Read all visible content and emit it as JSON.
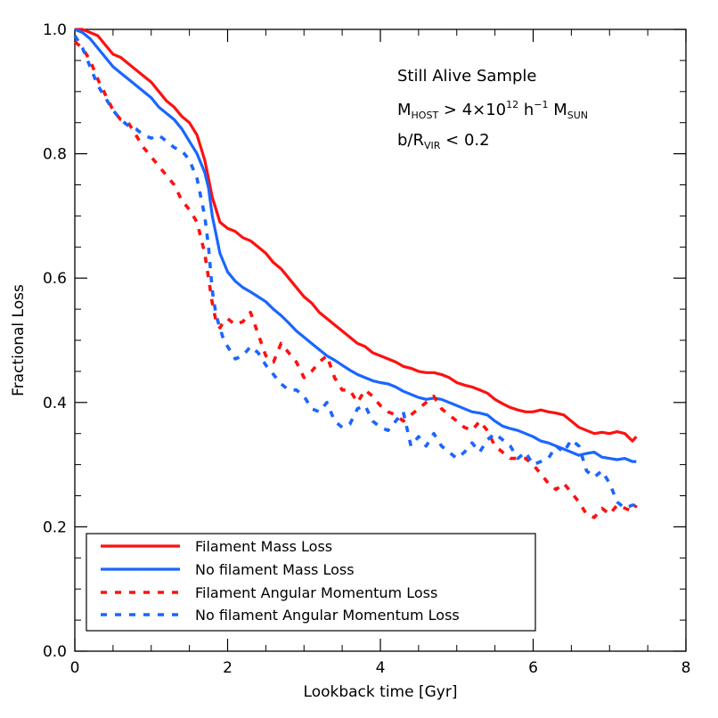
{
  "chart_data": {
    "type": "line",
    "xlabel": "Lookback time [Gyr]",
    "ylabel": "Fractional Loss",
    "xlim": [
      0,
      8
    ],
    "ylim": [
      0,
      1
    ],
    "xticks": [
      "0",
      "2",
      "4",
      "6",
      "8"
    ],
    "yticks": [
      "0.0",
      "0.2",
      "0.4",
      "0.6",
      "0.8",
      "1.0"
    ],
    "grid": false,
    "legend_position": "bottom-left",
    "annotations": {
      "line1": "Still Alive Sample",
      "line2_prefix": "M",
      "line2_sub1": "HOST",
      "line2_mid": " > 4×10",
      "line2_sup1": "12",
      "line2_mid2": " h",
      "line2_sup2": "−1",
      "line2_mid3": " M",
      "line2_sub2": "SUN",
      "line3_prefix": "b/R",
      "line3_sub": "VIR",
      "line3_suffix": " < 0.2"
    },
    "series": [
      {
        "name": "Filament Mass Loss",
        "color": "#ff1010",
        "style": "solid",
        "x": [
          0,
          0.1,
          0.2,
          0.3,
          0.4,
          0.5,
          0.6,
          0.7,
          0.8,
          0.9,
          1.0,
          1.1,
          1.2,
          1.3,
          1.4,
          1.5,
          1.6,
          1.7,
          1.75,
          1.8,
          1.85,
          1.9,
          1.95,
          2.0,
          2.1,
          2.2,
          2.3,
          2.4,
          2.5,
          2.6,
          2.7,
          2.8,
          2.9,
          3.0,
          3.1,
          3.2,
          3.3,
          3.4,
          3.5,
          3.6,
          3.7,
          3.8,
          3.9,
          4.0,
          4.1,
          4.2,
          4.3,
          4.4,
          4.5,
          4.6,
          4.7,
          4.8,
          4.9,
          5.0,
          5.1,
          5.2,
          5.3,
          5.4,
          5.5,
          5.6,
          5.7,
          5.8,
          5.9,
          6.0,
          6.1,
          6.2,
          6.3,
          6.4,
          6.5,
          6.6,
          6.7,
          6.8,
          6.9,
          7.0,
          7.1,
          7.2,
          7.3,
          7.35
        ],
        "values": [
          1.0,
          1.0,
          0.995,
          0.99,
          0.975,
          0.96,
          0.955,
          0.945,
          0.935,
          0.925,
          0.915,
          0.9,
          0.885,
          0.875,
          0.86,
          0.85,
          0.83,
          0.79,
          0.76,
          0.73,
          0.71,
          0.69,
          0.685,
          0.68,
          0.675,
          0.665,
          0.66,
          0.65,
          0.64,
          0.625,
          0.615,
          0.6,
          0.585,
          0.57,
          0.56,
          0.545,
          0.535,
          0.525,
          0.515,
          0.505,
          0.495,
          0.49,
          0.48,
          0.475,
          0.47,
          0.465,
          0.458,
          0.455,
          0.45,
          0.448,
          0.448,
          0.445,
          0.44,
          0.432,
          0.428,
          0.425,
          0.42,
          0.415,
          0.405,
          0.398,
          0.392,
          0.388,
          0.385,
          0.385,
          0.388,
          0.385,
          0.383,
          0.38,
          0.37,
          0.36,
          0.355,
          0.35,
          0.352,
          0.35,
          0.353,
          0.35,
          0.338,
          0.345
        ]
      },
      {
        "name": "No filament Mass Loss",
        "color": "#1a66ff",
        "style": "solid",
        "x": [
          0,
          0.1,
          0.2,
          0.3,
          0.4,
          0.5,
          0.6,
          0.7,
          0.8,
          0.9,
          1.0,
          1.1,
          1.2,
          1.3,
          1.4,
          1.5,
          1.6,
          1.7,
          1.75,
          1.8,
          1.85,
          1.9,
          1.95,
          2.0,
          2.1,
          2.2,
          2.3,
          2.4,
          2.5,
          2.6,
          2.7,
          2.8,
          2.9,
          3.0,
          3.1,
          3.2,
          3.3,
          3.4,
          3.5,
          3.6,
          3.7,
          3.8,
          3.9,
          4.0,
          4.1,
          4.2,
          4.3,
          4.4,
          4.5,
          4.6,
          4.7,
          4.8,
          4.9,
          5.0,
          5.1,
          5.2,
          5.3,
          5.4,
          5.5,
          5.6,
          5.7,
          5.8,
          5.9,
          6.0,
          6.1,
          6.2,
          6.3,
          6.4,
          6.5,
          6.6,
          6.7,
          6.8,
          6.9,
          7.0,
          7.1,
          7.2,
          7.3,
          7.35
        ],
        "values": [
          1.0,
          0.995,
          0.985,
          0.97,
          0.955,
          0.94,
          0.93,
          0.92,
          0.91,
          0.9,
          0.89,
          0.875,
          0.865,
          0.855,
          0.84,
          0.82,
          0.8,
          0.77,
          0.745,
          0.7,
          0.67,
          0.64,
          0.625,
          0.61,
          0.595,
          0.585,
          0.578,
          0.57,
          0.562,
          0.55,
          0.54,
          0.528,
          0.515,
          0.505,
          0.495,
          0.485,
          0.475,
          0.468,
          0.46,
          0.452,
          0.445,
          0.44,
          0.435,
          0.432,
          0.43,
          0.425,
          0.418,
          0.413,
          0.408,
          0.405,
          0.407,
          0.405,
          0.4,
          0.395,
          0.39,
          0.385,
          0.383,
          0.38,
          0.37,
          0.362,
          0.358,
          0.355,
          0.35,
          0.345,
          0.338,
          0.335,
          0.33,
          0.325,
          0.32,
          0.315,
          0.318,
          0.32,
          0.312,
          0.31,
          0.308,
          0.31,
          0.305,
          0.305
        ]
      },
      {
        "name": "Filament Angular Momentum Loss",
        "color": "#ff1010",
        "style": "dashed",
        "x": [
          0,
          0.1,
          0.2,
          0.3,
          0.4,
          0.5,
          0.6,
          0.7,
          0.8,
          0.9,
          1.0,
          1.1,
          1.2,
          1.3,
          1.4,
          1.5,
          1.6,
          1.7,
          1.75,
          1.8,
          1.85,
          1.9,
          1.95,
          2.0,
          2.1,
          2.2,
          2.3,
          2.4,
          2.5,
          2.6,
          2.7,
          2.8,
          2.9,
          3.0,
          3.1,
          3.2,
          3.3,
          3.4,
          3.5,
          3.6,
          3.7,
          3.8,
          3.9,
          4.0,
          4.1,
          4.2,
          4.3,
          4.4,
          4.5,
          4.6,
          4.7,
          4.8,
          4.9,
          5.0,
          5.1,
          5.2,
          5.3,
          5.4,
          5.5,
          5.6,
          5.7,
          5.8,
          5.9,
          6.0,
          6.1,
          6.2,
          6.3,
          6.4,
          6.5,
          6.6,
          6.7,
          6.8,
          6.9,
          7.0,
          7.1,
          7.2,
          7.3,
          7.35
        ],
        "values": [
          0.98,
          0.97,
          0.95,
          0.92,
          0.895,
          0.87,
          0.855,
          0.85,
          0.83,
          0.81,
          0.795,
          0.78,
          0.765,
          0.75,
          0.725,
          0.71,
          0.69,
          0.64,
          0.6,
          0.56,
          0.53,
          0.52,
          0.53,
          0.535,
          0.525,
          0.53,
          0.545,
          0.51,
          0.475,
          0.465,
          0.495,
          0.48,
          0.465,
          0.44,
          0.45,
          0.465,
          0.475,
          0.44,
          0.42,
          0.42,
          0.4,
          0.42,
          0.41,
          0.395,
          0.385,
          0.38,
          0.37,
          0.38,
          0.39,
          0.4,
          0.41,
          0.39,
          0.38,
          0.37,
          0.36,
          0.355,
          0.37,
          0.355,
          0.33,
          0.32,
          0.31,
          0.31,
          0.31,
          0.3,
          0.285,
          0.27,
          0.26,
          0.27,
          0.255,
          0.24,
          0.22,
          0.215,
          0.23,
          0.22,
          0.235,
          0.23,
          0.225,
          0.235
        ]
      },
      {
        "name": "No filament Angular Momentum Loss",
        "color": "#1a66ff",
        "style": "dashed",
        "x": [
          0,
          0.1,
          0.2,
          0.3,
          0.4,
          0.5,
          0.6,
          0.7,
          0.8,
          0.9,
          1.0,
          1.1,
          1.2,
          1.3,
          1.4,
          1.5,
          1.6,
          1.7,
          1.75,
          1.8,
          1.85,
          1.9,
          1.95,
          2.0,
          2.1,
          2.2,
          2.3,
          2.4,
          2.5,
          2.6,
          2.7,
          2.8,
          2.9,
          3.0,
          3.1,
          3.2,
          3.3,
          3.4,
          3.5,
          3.6,
          3.7,
          3.8,
          3.9,
          4.0,
          4.1,
          4.2,
          4.3,
          4.4,
          4.5,
          4.6,
          4.7,
          4.8,
          4.9,
          5.0,
          5.1,
          5.2,
          5.3,
          5.4,
          5.5,
          5.6,
          5.7,
          5.8,
          5.9,
          6.0,
          6.1,
          6.2,
          6.3,
          6.4,
          6.5,
          6.6,
          6.7,
          6.8,
          6.9,
          7.0,
          7.1,
          7.2,
          7.3,
          7.35
        ],
        "values": [
          0.99,
          0.97,
          0.94,
          0.91,
          0.89,
          0.87,
          0.855,
          0.845,
          0.84,
          0.83,
          0.825,
          0.83,
          0.82,
          0.81,
          0.805,
          0.79,
          0.76,
          0.7,
          0.65,
          0.58,
          0.54,
          0.52,
          0.5,
          0.49,
          0.47,
          0.475,
          0.49,
          0.48,
          0.46,
          0.445,
          0.43,
          0.42,
          0.42,
          0.41,
          0.39,
          0.385,
          0.4,
          0.37,
          0.36,
          0.365,
          0.39,
          0.395,
          0.37,
          0.36,
          0.355,
          0.37,
          0.385,
          0.33,
          0.345,
          0.33,
          0.35,
          0.33,
          0.32,
          0.31,
          0.32,
          0.335,
          0.32,
          0.34,
          0.35,
          0.34,
          0.33,
          0.31,
          0.32,
          0.3,
          0.305,
          0.31,
          0.33,
          0.32,
          0.34,
          0.33,
          0.29,
          0.28,
          0.29,
          0.27,
          0.24,
          0.23,
          0.235,
          0.235
        ]
      }
    ]
  }
}
